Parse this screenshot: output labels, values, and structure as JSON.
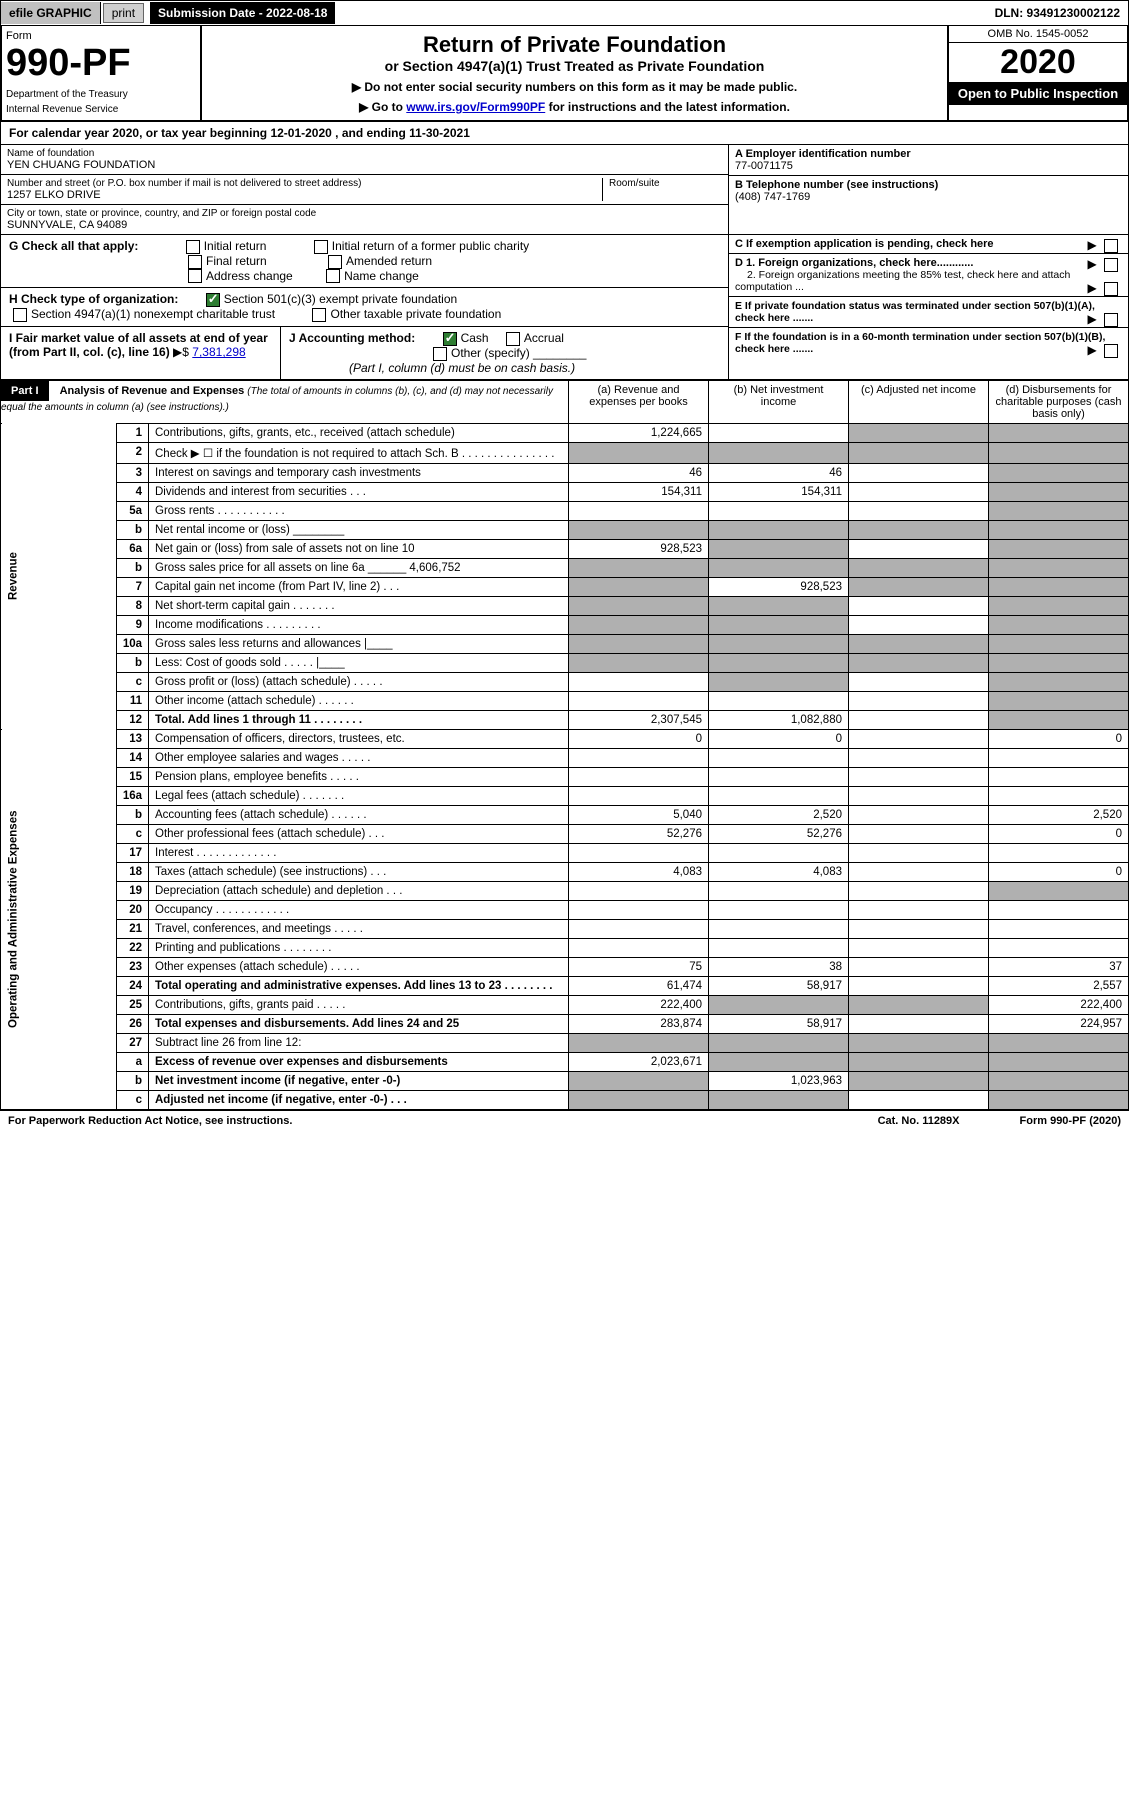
{
  "topbar": {
    "efile": "efile GRAPHIC",
    "print": "print",
    "sub_date_label": "Submission Date - 2022-08-18",
    "dln_label": "DLN: 93491230002122"
  },
  "header": {
    "form_label": "Form",
    "form_number": "990-PF",
    "dept": "Department of the Treasury",
    "irs": "Internal Revenue Service",
    "title": "Return of Private Foundation",
    "subtitle": "or Section 4947(a)(1) Trust Treated as Private Foundation",
    "instruct1": "▶ Do not enter social security numbers on this form as it may be made public.",
    "instruct2_pre": "▶ Go to ",
    "instruct2_link": "www.irs.gov/Form990PF",
    "instruct2_post": " for instructions and the latest information.",
    "omb": "OMB No. 1545-0052",
    "year": "2020",
    "inspection": "Open to Public Inspection"
  },
  "cal_year": "For calendar year 2020, or tax year beginning 12-01-2020                      , and ending 11-30-2021",
  "foundation": {
    "name_label": "Name of foundation",
    "name": "YEN CHUANG FOUNDATION",
    "addr_label": "Number and street (or P.O. box number if mail is not delivered to street address)",
    "room_label": "Room/suite",
    "addr": "1257 ELKO DRIVE",
    "city_label": "City or town, state or province, country, and ZIP or foreign postal code",
    "city": "SUNNYVALE, CA  94089",
    "ein_label": "A Employer identification number",
    "ein": "77-0071175",
    "phone_label": "B Telephone number (see instructions)",
    "phone": "(408) 747-1769",
    "c_label": "C If exemption application is pending, check here",
    "d1_label": "D 1. Foreign organizations, check here............",
    "d2_label": "2. Foreign organizations meeting the 85% test, check here and attach computation ...",
    "e_label": "E  If private foundation status was terminated under section 507(b)(1)(A), check here .......",
    "f_label": "F  If the foundation is in a 60-month termination under section 507(b)(1)(B), check here ......."
  },
  "sectionG": {
    "label": "G Check all that apply:",
    "opts": [
      "Initial return",
      "Initial return of a former public charity",
      "Final return",
      "Amended return",
      "Address change",
      "Name change"
    ]
  },
  "sectionH": {
    "label": "H Check type of organization:",
    "opt1": "Section 501(c)(3) exempt private foundation",
    "opt2": "Section 4947(a)(1) nonexempt charitable trust",
    "opt3": "Other taxable private foundation"
  },
  "sectionI": {
    "label": "I Fair market value of all assets at end of year (from Part II, col. (c), line 16)",
    "value": "7,381,298"
  },
  "sectionJ": {
    "label": "J Accounting method:",
    "cash": "Cash",
    "accrual": "Accrual",
    "other": "Other (specify)",
    "note": "(Part I, column (d) must be on cash basis.)"
  },
  "part1": {
    "label": "Part I",
    "title": "Analysis of Revenue and Expenses",
    "note": "(The total of amounts in columns (b), (c), and (d) may not necessarily equal the amounts in column (a) (see instructions).)",
    "col_a": "(a) Revenue and expenses per books",
    "col_b": "(b) Net investment income",
    "col_c": "(c) Adjusted net income",
    "col_d": "(d) Disbursements for charitable purposes (cash basis only)"
  },
  "side_labels": {
    "revenue": "Revenue",
    "expenses": "Operating and Administrative Expenses"
  },
  "rows": [
    {
      "n": "1",
      "desc": "Contributions, gifts, grants, etc., received (attach schedule)",
      "a": "1,224,665",
      "b": "",
      "c": "shaded",
      "d": "shaded"
    },
    {
      "n": "2",
      "desc": "Check ▶ ☐ if the foundation is not required to attach Sch. B   .  .  .  .  .  .  .  .  .  .  .  .  .  .  .",
      "a": "shaded",
      "b": "shaded",
      "c": "shaded",
      "d": "shaded"
    },
    {
      "n": "3",
      "desc": "Interest on savings and temporary cash investments",
      "a": "46",
      "b": "46",
      "c": "",
      "d": "shaded"
    },
    {
      "n": "4",
      "desc": "Dividends and interest from securities  .  .  .",
      "a": "154,311",
      "b": "154,311",
      "c": "",
      "d": "shaded"
    },
    {
      "n": "5a",
      "desc": "Gross rents  .  .  .  .  .  .  .  .  .  .  .",
      "a": "",
      "b": "",
      "c": "",
      "d": "shaded"
    },
    {
      "n": "b",
      "desc": "Net rental income or (loss)  ________",
      "a": "shaded",
      "b": "shaded",
      "c": "shaded",
      "d": "shaded"
    },
    {
      "n": "6a",
      "desc": "Net gain or (loss) from sale of assets not on line 10",
      "a": "928,523",
      "b": "shaded",
      "c": "",
      "d": "shaded"
    },
    {
      "n": "b",
      "desc": "Gross sales price for all assets on line 6a ______ 4,606,752",
      "a": "shaded",
      "b": "shaded",
      "c": "shaded",
      "d": "shaded"
    },
    {
      "n": "7",
      "desc": "Capital gain net income (from Part IV, line 2)  .  .  .",
      "a": "shaded",
      "b": "928,523",
      "c": "shaded",
      "d": "shaded"
    },
    {
      "n": "8",
      "desc": "Net short-term capital gain  .  .  .  .  .  .  .",
      "a": "shaded",
      "b": "shaded",
      "c": "",
      "d": "shaded"
    },
    {
      "n": "9",
      "desc": "Income modifications  .  .  .  .  .  .  .  .  .",
      "a": "shaded",
      "b": "shaded",
      "c": "",
      "d": "shaded"
    },
    {
      "n": "10a",
      "desc": "Gross sales less returns and allowances  |____",
      "a": "shaded",
      "b": "shaded",
      "c": "shaded",
      "d": "shaded"
    },
    {
      "n": "b",
      "desc": "Less: Cost of goods sold  .  .  .  .  .  |____",
      "a": "shaded",
      "b": "shaded",
      "c": "shaded",
      "d": "shaded"
    },
    {
      "n": "c",
      "desc": "Gross profit or (loss) (attach schedule)  .  .  .  .  .",
      "a": "",
      "b": "shaded",
      "c": "",
      "d": "shaded"
    },
    {
      "n": "11",
      "desc": "Other income (attach schedule)  .  .  .  .  .  .",
      "a": "",
      "b": "",
      "c": "",
      "d": "shaded"
    },
    {
      "n": "12",
      "desc": "Total. Add lines 1 through 11  .  .  .  .  .  .  .  .",
      "a": "2,307,545",
      "b": "1,082,880",
      "c": "",
      "d": "shaded",
      "bold": true
    },
    {
      "n": "13",
      "desc": "Compensation of officers, directors, trustees, etc.",
      "a": "0",
      "b": "0",
      "c": "",
      "d": "0"
    },
    {
      "n": "14",
      "desc": "Other employee salaries and wages  .  .  .  .  .",
      "a": "",
      "b": "",
      "c": "",
      "d": ""
    },
    {
      "n": "15",
      "desc": "Pension plans, employee benefits  .  .  .  .  .",
      "a": "",
      "b": "",
      "c": "",
      "d": ""
    },
    {
      "n": "16a",
      "desc": "Legal fees (attach schedule)  .  .  .  .  .  .  .",
      "a": "",
      "b": "",
      "c": "",
      "d": ""
    },
    {
      "n": "b",
      "desc": "Accounting fees (attach schedule)  .  .  .  .  .  .",
      "a": "5,040",
      "b": "2,520",
      "c": "",
      "d": "2,520"
    },
    {
      "n": "c",
      "desc": "Other professional fees (attach schedule)  .  .  .",
      "a": "52,276",
      "b": "52,276",
      "c": "",
      "d": "0"
    },
    {
      "n": "17",
      "desc": "Interest  .  .  .  .  .  .  .  .  .  .  .  .  .",
      "a": "",
      "b": "",
      "c": "",
      "d": ""
    },
    {
      "n": "18",
      "desc": "Taxes (attach schedule) (see instructions)  .  .  .",
      "a": "4,083",
      "b": "4,083",
      "c": "",
      "d": "0"
    },
    {
      "n": "19",
      "desc": "Depreciation (attach schedule) and depletion  .  .  .",
      "a": "",
      "b": "",
      "c": "",
      "d": "shaded"
    },
    {
      "n": "20",
      "desc": "Occupancy  .  .  .  .  .  .  .  .  .  .  .  .",
      "a": "",
      "b": "",
      "c": "",
      "d": ""
    },
    {
      "n": "21",
      "desc": "Travel, conferences, and meetings  .  .  .  .  .",
      "a": "",
      "b": "",
      "c": "",
      "d": ""
    },
    {
      "n": "22",
      "desc": "Printing and publications  .  .  .  .  .  .  .  .",
      "a": "",
      "b": "",
      "c": "",
      "d": ""
    },
    {
      "n": "23",
      "desc": "Other expenses (attach schedule)  .  .  .  .  .",
      "a": "75",
      "b": "38",
      "c": "",
      "d": "37"
    },
    {
      "n": "24",
      "desc": "Total operating and administrative expenses. Add lines 13 to 23  .  .  .  .  .  .  .  .",
      "a": "61,474",
      "b": "58,917",
      "c": "",
      "d": "2,557",
      "bold": true
    },
    {
      "n": "25",
      "desc": "Contributions, gifts, grants paid  .  .  .  .  .",
      "a": "222,400",
      "b": "shaded",
      "c": "shaded",
      "d": "222,400"
    },
    {
      "n": "26",
      "desc": "Total expenses and disbursements. Add lines 24 and 25",
      "a": "283,874",
      "b": "58,917",
      "c": "",
      "d": "224,957",
      "bold": true
    },
    {
      "n": "27",
      "desc": "Subtract line 26 from line 12:",
      "a": "shaded",
      "b": "shaded",
      "c": "shaded",
      "d": "shaded"
    },
    {
      "n": "a",
      "desc": "Excess of revenue over expenses and disbursements",
      "a": "2,023,671",
      "b": "shaded",
      "c": "shaded",
      "d": "shaded",
      "bold": true
    },
    {
      "n": "b",
      "desc": "Net investment income (if negative, enter -0-)",
      "a": "shaded",
      "b": "1,023,963",
      "c": "shaded",
      "d": "shaded",
      "bold": true
    },
    {
      "n": "c",
      "desc": "Adjusted net income (if negative, enter -0-)  .  .  .",
      "a": "shaded",
      "b": "shaded",
      "c": "",
      "d": "shaded",
      "bold": true
    }
  ],
  "footer": {
    "left": "For Paperwork Reduction Act Notice, see instructions.",
    "mid": "Cat. No. 11289X",
    "right": "Form 990-PF (2020)"
  }
}
